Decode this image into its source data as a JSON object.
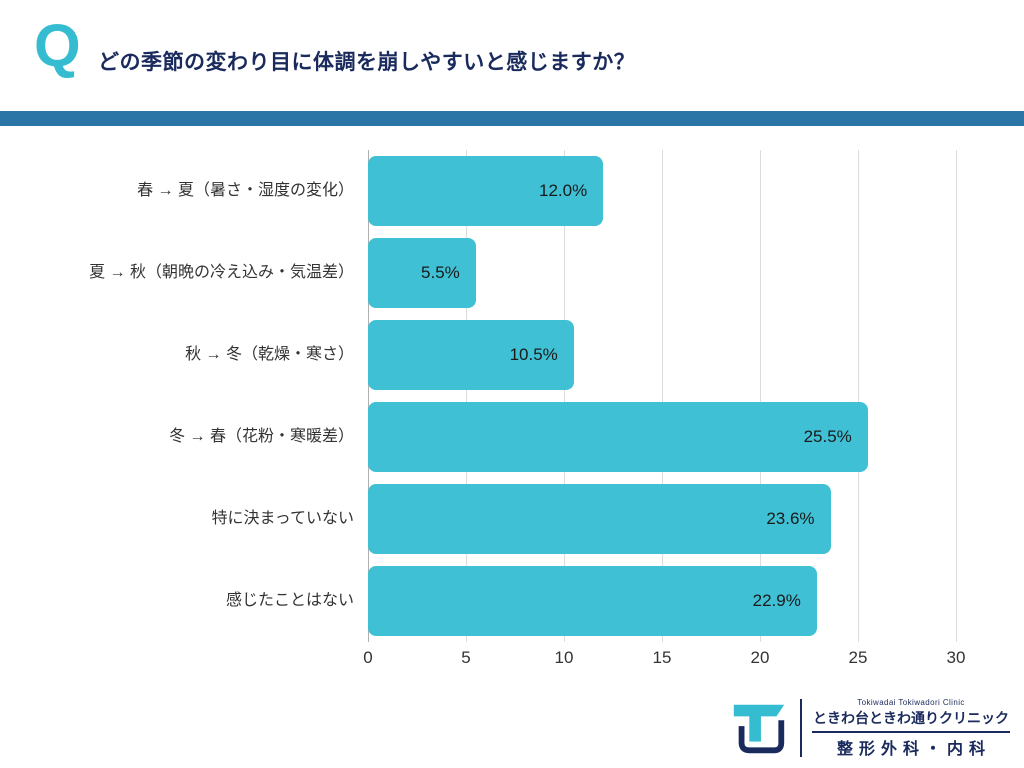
{
  "header": {
    "q_mark": "Q",
    "question": "どの季節の変わり目に体調を崩しやすいと感じますか？"
  },
  "chart_data": {
    "type": "bar",
    "orientation": "horizontal",
    "title": "",
    "categories": [
      "春 → 夏（暑さ・湿度の変化）",
      "夏 → 秋（朝晩の冷え込み・気温差）",
      "秋 → 冬（乾燥・寒さ）",
      "冬 → 春（花粉・寒暖差）",
      "特に決まっていない",
      "感じたことはない"
    ],
    "values": [
      12.0,
      5.5,
      10.5,
      25.5,
      23.6,
      22.9
    ],
    "value_labels": [
      "12.0%",
      "5.5%",
      "10.5%",
      "25.5%",
      "23.6%",
      "22.9%"
    ],
    "xlim": [
      0,
      30
    ],
    "x_ticks": [
      0,
      5,
      10,
      15,
      20,
      25,
      30
    ],
    "grid": true,
    "legend": false,
    "bar_color": "#3fc0d4"
  },
  "footer": {
    "clinic_name_en": "Tokiwadai Tokiwadori Clinic",
    "clinic_name_ja": "ときわ台ときわ通りクリニック",
    "departments": "整形外科・内科"
  },
  "colors": {
    "accent_teal": "#35bcd0",
    "navy": "#1a2a5c",
    "stripe_blue": "#2b74a6",
    "bar_teal": "#3fc0d4",
    "gridline": "#dcdcdc"
  }
}
